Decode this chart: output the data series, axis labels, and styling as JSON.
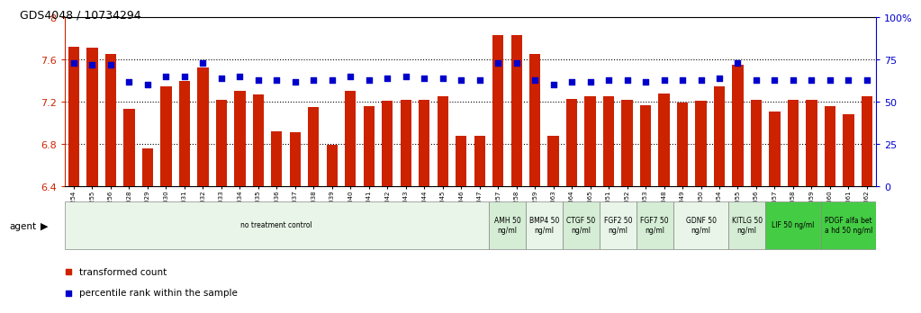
{
  "title": "GDS4048 / 10734294",
  "samples": [
    "GSM509254",
    "GSM509255",
    "GSM509256",
    "GSM510028",
    "GSM510029",
    "GSM510030",
    "GSM510031",
    "GSM510032",
    "GSM510033",
    "GSM510034",
    "GSM510035",
    "GSM510036",
    "GSM510037",
    "GSM510038",
    "GSM510039",
    "GSM510040",
    "GSM510041",
    "GSM510042",
    "GSM510043",
    "GSM510044",
    "GSM510045",
    "GSM510046",
    "GSM510047",
    "GSM509257",
    "GSM509258",
    "GSM509259",
    "GSM510063",
    "GSM510064",
    "GSM510065",
    "GSM510051",
    "GSM510052",
    "GSM510053",
    "GSM510048",
    "GSM510049",
    "GSM510050",
    "GSM510054",
    "GSM510055",
    "GSM510056",
    "GSM510057",
    "GSM510058",
    "GSM510059",
    "GSM510060",
    "GSM510061",
    "GSM510062"
  ],
  "bar_values": [
    7.72,
    7.71,
    7.65,
    7.13,
    6.76,
    7.35,
    7.4,
    7.53,
    7.22,
    7.3,
    7.27,
    6.92,
    6.91,
    7.15,
    6.79,
    7.3,
    7.16,
    7.21,
    7.22,
    7.22,
    7.25,
    6.88,
    6.88,
    7.83,
    7.83,
    7.65,
    6.88,
    7.23,
    7.25,
    7.25,
    7.22,
    7.17,
    7.28,
    7.19,
    7.21,
    7.35,
    7.55,
    7.22,
    7.11,
    7.22,
    7.22,
    7.16,
    7.08,
    7.25
  ],
  "percentile_values": [
    73,
    72,
    72,
    62,
    60,
    65,
    65,
    73,
    64,
    65,
    63,
    63,
    62,
    63,
    63,
    65,
    63,
    64,
    65,
    64,
    64,
    63,
    63,
    73,
    73,
    63,
    60,
    62,
    62,
    63,
    63,
    62,
    63,
    63,
    63,
    64,
    73,
    63,
    63,
    63,
    63,
    63,
    63,
    63
  ],
  "ymin": 6.4,
  "ymax": 8.0,
  "bar_color": "#cc2200",
  "percentile_color": "#0000cc",
  "agent_groups": [
    {
      "label": "no treatment control",
      "start": 0,
      "end": 23,
      "color": "#e8f5e8"
    },
    {
      "label": "AMH 50\nng/ml",
      "start": 23,
      "end": 25,
      "color": "#d4edd4"
    },
    {
      "label": "BMP4 50\nng/ml",
      "start": 25,
      "end": 27,
      "color": "#e8f5e8"
    },
    {
      "label": "CTGF 50\nng/ml",
      "start": 27,
      "end": 29,
      "color": "#d4edd4"
    },
    {
      "label": "FGF2 50\nng/ml",
      "start": 29,
      "end": 31,
      "color": "#e8f5e8"
    },
    {
      "label": "FGF7 50\nng/ml",
      "start": 31,
      "end": 33,
      "color": "#d4edd4"
    },
    {
      "label": "GDNF 50\nng/ml",
      "start": 33,
      "end": 36,
      "color": "#e8f5e8"
    },
    {
      "label": "KITLG 50\nng/ml",
      "start": 36,
      "end": 38,
      "color": "#d4edd4"
    },
    {
      "label": "LIF 50 ng/ml",
      "start": 38,
      "end": 41,
      "color": "#44cc44"
    },
    {
      "label": "PDGF alfa bet\na hd 50 ng/ml",
      "start": 41,
      "end": 44,
      "color": "#44cc44"
    }
  ]
}
